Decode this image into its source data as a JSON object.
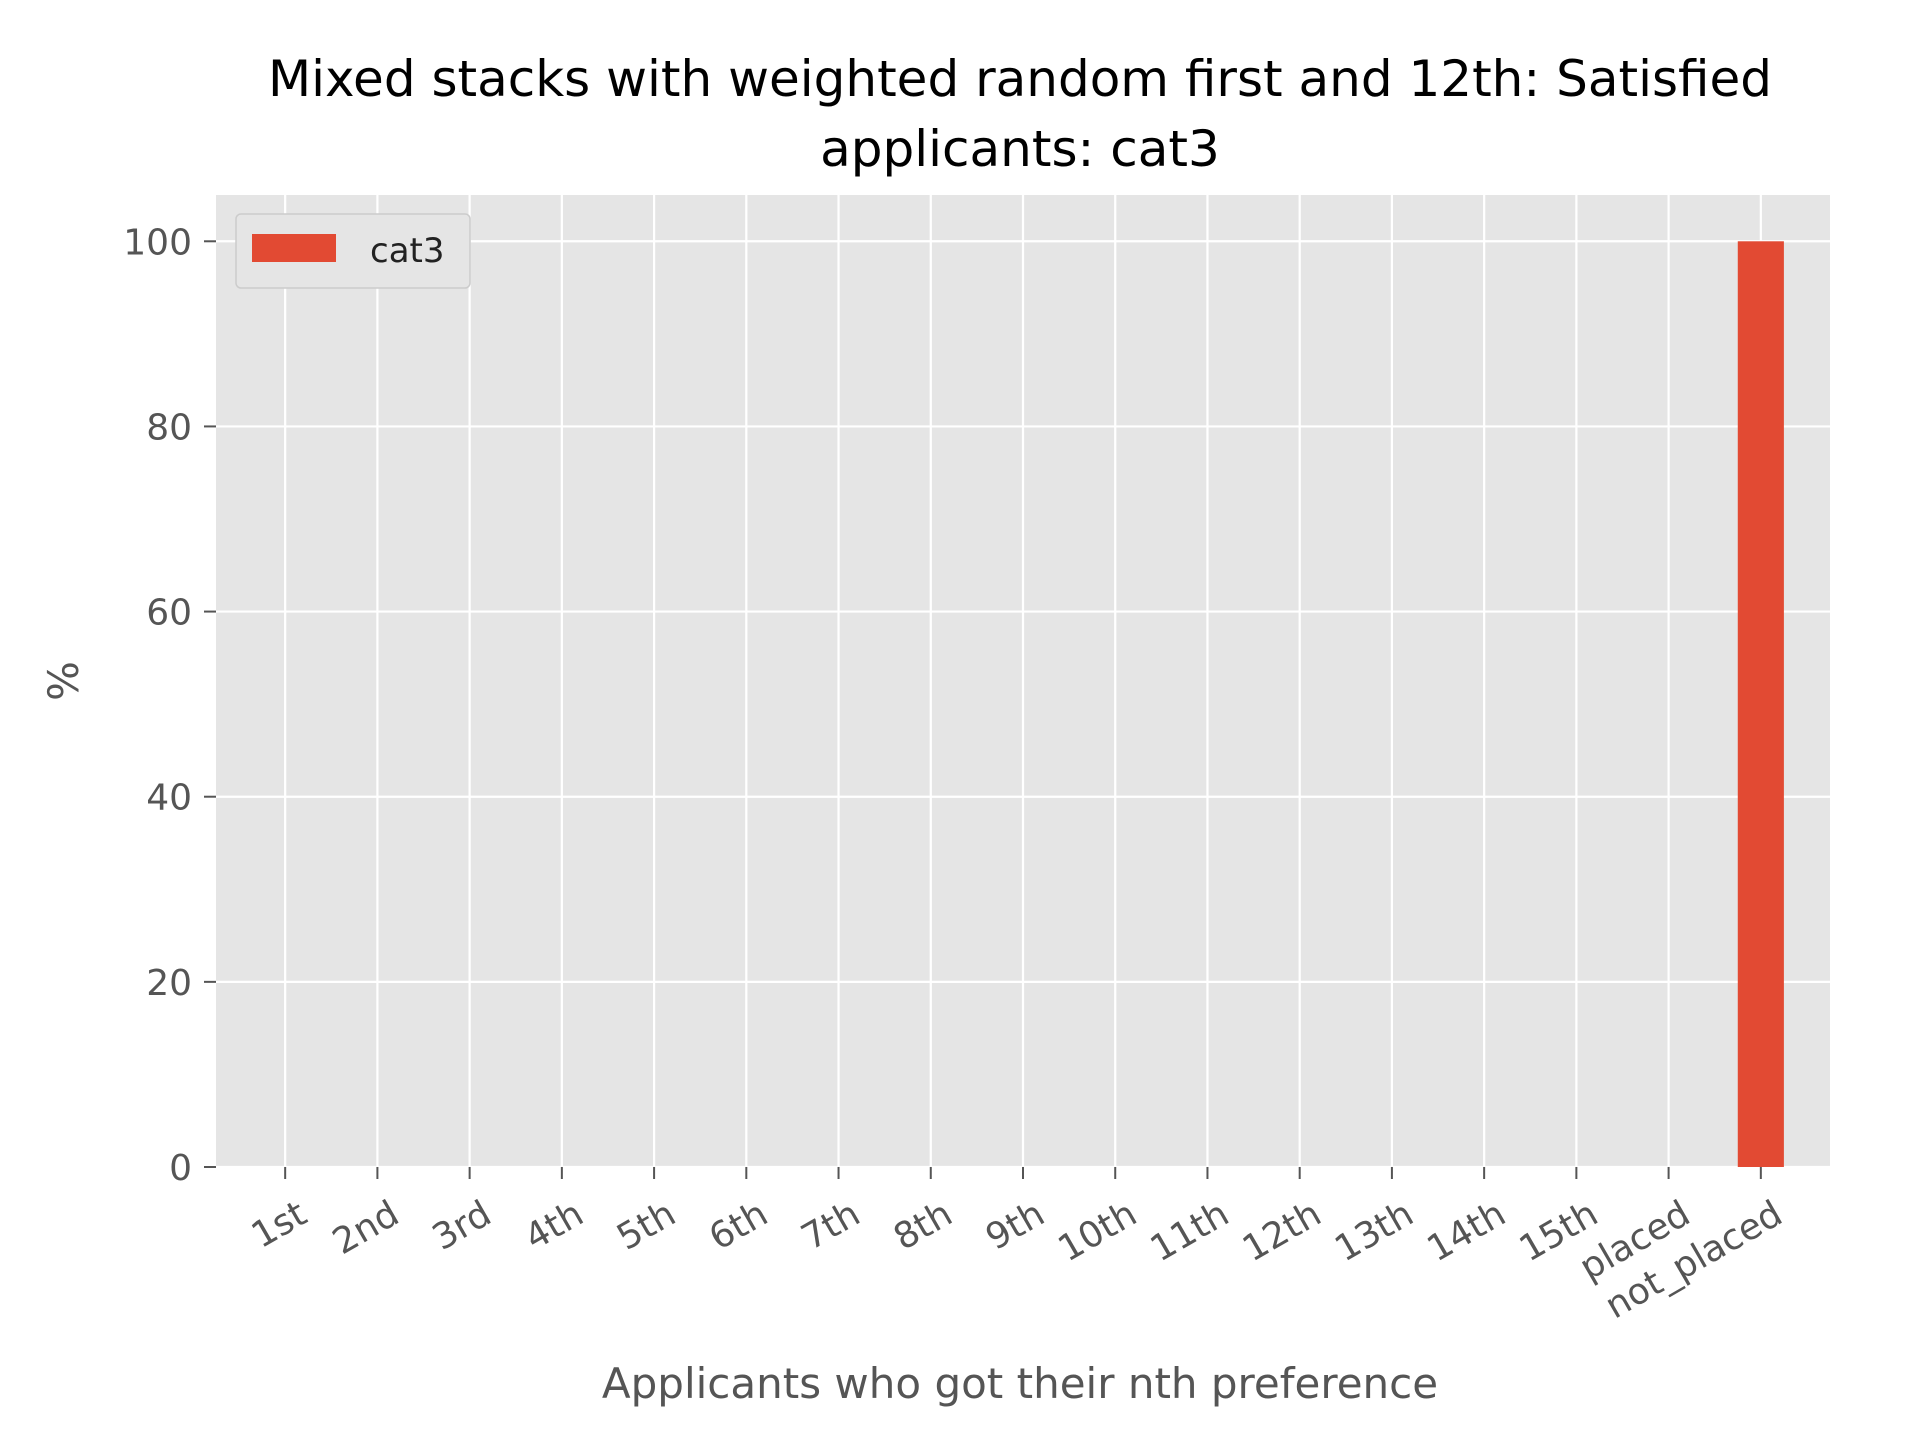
{
  "chart_data": {
    "type": "bar",
    "title": "Mixed stacks with weighted random first and 12th: Satisfied applicants: cat3",
    "title_lines": [
      "Mixed stacks with weighted random first and 12th: Satisfied",
      "applicants: cat3"
    ],
    "xlabel": "Applicants who got their nth preference",
    "ylabel": "%",
    "categories": [
      "1st",
      "2nd",
      "3rd",
      "4th",
      "5th",
      "6th",
      "7th",
      "8th",
      "9th",
      "10th",
      "11th",
      "12th",
      "13th",
      "14th",
      "15th",
      "placed",
      "not_placed"
    ],
    "series": [
      {
        "name": "cat3",
        "color": "#E24A33",
        "values": [
          0,
          0,
          0,
          0,
          0,
          0,
          0,
          0,
          0,
          0,
          0,
          0,
          0,
          0,
          0,
          0,
          100
        ]
      }
    ],
    "ylim": [
      0,
      105
    ],
    "yticks": [
      0,
      20,
      40,
      60,
      80,
      100
    ],
    "grid": true,
    "legend_position": "top-left",
    "background_color": "#E5E5E5",
    "grid_color": "#FFFFFF"
  }
}
